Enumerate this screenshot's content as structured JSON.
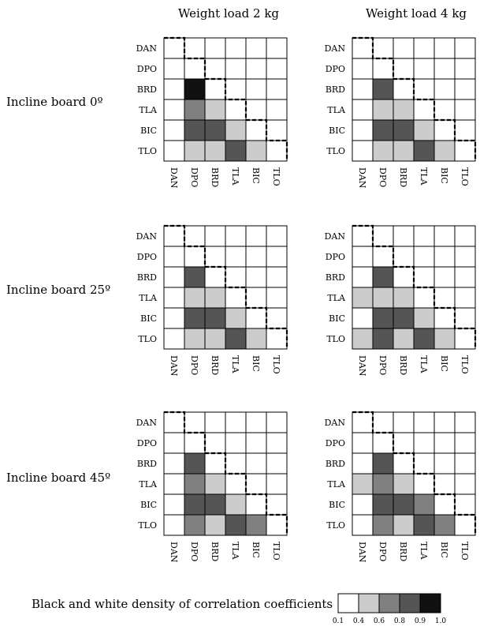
{
  "chart_data": {
    "type": "heatmap",
    "labels": [
      "DAN",
      "DPO",
      "BRD",
      "TLA",
      "BIC",
      "TLO"
    ],
    "column_titles": [
      "Weight load 2 kg",
      "Weight load 4 kg"
    ],
    "row_titles": [
      "Incline board 0º",
      "Incline board 25º",
      "Incline board 45º"
    ],
    "legend": {
      "title": "Black and white density of correlation coefficients",
      "ticks": [
        "0.1",
        "0.4",
        "0.6",
        "0.8",
        "0.9",
        "1.0"
      ],
      "levels": [
        {
          "range": [
            0.1,
            0.4
          ],
          "color": "#ffffff"
        },
        {
          "range": [
            0.4,
            0.6
          ],
          "color": "#cccccc"
        },
        {
          "range": [
            0.6,
            0.8
          ],
          "color": "#808080"
        },
        {
          "range": [
            0.8,
            0.9
          ],
          "color": "#555555"
        },
        {
          "range": [
            0.9,
            1.0
          ],
          "color": "#111111"
        }
      ]
    },
    "panels": [
      {
        "row": 0,
        "col": 0,
        "levels": [
          [
            0,
            0,
            0,
            0,
            0,
            0
          ],
          [
            0,
            0,
            0,
            0,
            0,
            0
          ],
          [
            0,
            4,
            0,
            0,
            0,
            0
          ],
          [
            0,
            2,
            1,
            0,
            0,
            0
          ],
          [
            0,
            3,
            3,
            1,
            0,
            0
          ],
          [
            0,
            1,
            1,
            3,
            1,
            0
          ]
        ]
      },
      {
        "row": 0,
        "col": 1,
        "levels": [
          [
            0,
            0,
            0,
            0,
            0,
            0
          ],
          [
            0,
            0,
            0,
            0,
            0,
            0
          ],
          [
            0,
            3,
            0,
            0,
            0,
            0
          ],
          [
            0,
            1,
            1,
            0,
            0,
            0
          ],
          [
            0,
            3,
            3,
            1,
            0,
            0
          ],
          [
            0,
            1,
            1,
            3,
            1,
            0
          ]
        ]
      },
      {
        "row": 1,
        "col": 0,
        "levels": [
          [
            0,
            0,
            0,
            0,
            0,
            0
          ],
          [
            0,
            0,
            0,
            0,
            0,
            0
          ],
          [
            0,
            3,
            0,
            0,
            0,
            0
          ],
          [
            0,
            1,
            1,
            0,
            0,
            0
          ],
          [
            0,
            3,
            3,
            1,
            0,
            0
          ],
          [
            0,
            1,
            1,
            3,
            1,
            0
          ]
        ]
      },
      {
        "row": 1,
        "col": 1,
        "levels": [
          [
            0,
            0,
            0,
            0,
            0,
            0
          ],
          [
            0,
            0,
            0,
            0,
            0,
            0
          ],
          [
            0,
            3,
            0,
            0,
            0,
            0
          ],
          [
            1,
            1,
            1,
            0,
            0,
            0
          ],
          [
            0,
            3,
            3,
            1,
            0,
            0
          ],
          [
            1,
            3,
            1,
            3,
            1,
            0
          ]
        ]
      },
      {
        "row": 2,
        "col": 0,
        "levels": [
          [
            0,
            0,
            0,
            0,
            0,
            0
          ],
          [
            0,
            0,
            0,
            0,
            0,
            0
          ],
          [
            0,
            3,
            0,
            0,
            0,
            0
          ],
          [
            0,
            2,
            1,
            0,
            0,
            0
          ],
          [
            0,
            3,
            3,
            1,
            0,
            0
          ],
          [
            0,
            2,
            1,
            3,
            2,
            0
          ]
        ]
      },
      {
        "row": 2,
        "col": 1,
        "levels": [
          [
            0,
            0,
            0,
            0,
            0,
            0
          ],
          [
            0,
            0,
            0,
            0,
            0,
            0
          ],
          [
            0,
            3,
            0,
            0,
            0,
            0
          ],
          [
            1,
            2,
            1,
            0,
            0,
            0
          ],
          [
            0,
            3,
            3,
            2,
            0,
            0
          ],
          [
            0,
            2,
            1,
            3,
            2,
            0
          ]
        ]
      }
    ]
  }
}
